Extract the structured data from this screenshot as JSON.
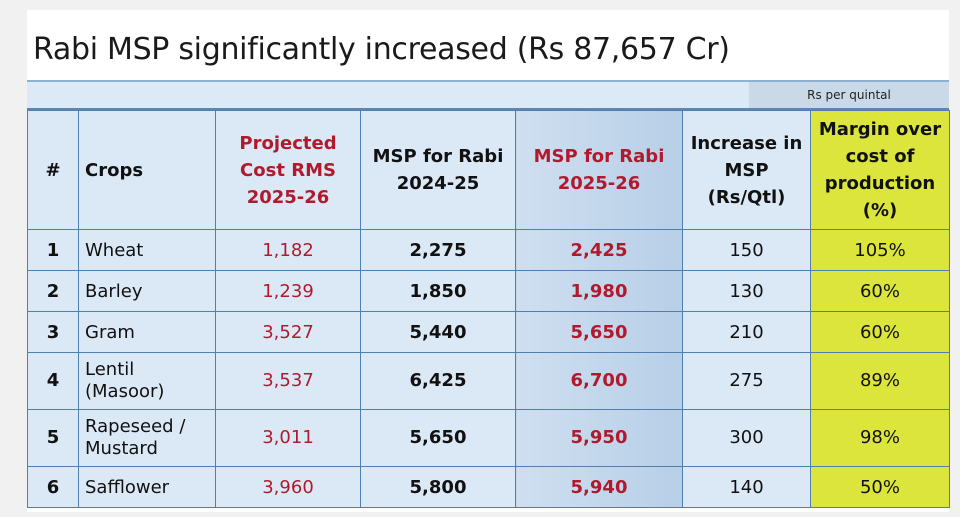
{
  "title": "Rabi MSP significantly increased (Rs 87,657 Cr)",
  "unit_note": "Rs per quintal",
  "columns": [
    "#",
    "Crops",
    "Projected Cost RMS 2025-26",
    "MSP for Rabi 2024-25",
    "MSP for Rabi 2025-26",
    "Increase in MSP (Rs/Qtl)",
    "Margin over cost of production (%)"
  ],
  "rows": [
    {
      "n": "1",
      "crop": "Wheat",
      "cost": "1,182",
      "msp24": "2,275",
      "msp25": "2,425",
      "inc": "150",
      "margin": "105%"
    },
    {
      "n": "2",
      "crop": "Barley",
      "cost": "1,239",
      "msp24": "1,850",
      "msp25": "1,980",
      "inc": "130",
      "margin": "60%"
    },
    {
      "n": "3",
      "crop": "Gram",
      "cost": "3,527",
      "msp24": "5,440",
      "msp25": "5,650",
      "inc": "210",
      "margin": "60%"
    },
    {
      "n": "4",
      "crop": "Lentil (Masoor)",
      "cost": "3,537",
      "msp24": "6,425",
      "msp25": "6,700",
      "inc": "275",
      "margin": "89%"
    },
    {
      "n": "5",
      "crop": "Rapeseed / Mustard",
      "cost": "3,011",
      "msp24": "5,650",
      "msp25": "5,950",
      "inc": "300",
      "margin": "98%"
    },
    {
      "n": "6",
      "crop": "Safflower",
      "cost": "3,960",
      "msp24": "5,800",
      "msp25": "5,940",
      "inc": "140",
      "margin": "50%"
    }
  ],
  "colors": {
    "accent_red": "#b01a2c",
    "table_blue": "#dbe8f6",
    "highlight_yellow": "#dbe53c"
  }
}
